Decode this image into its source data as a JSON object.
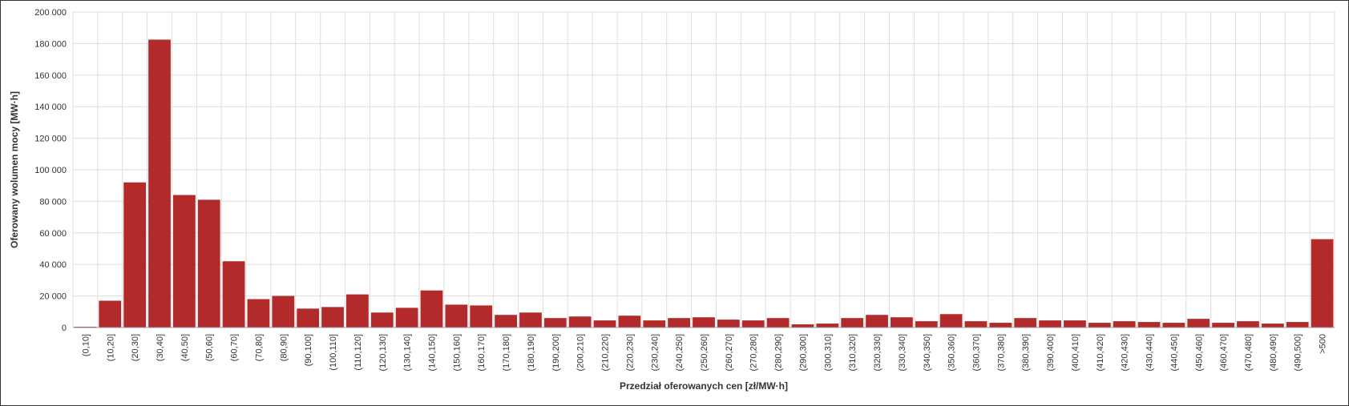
{
  "chart_data": {
    "type": "bar",
    "x_label": "Przedział oferowanych cen [zł/MW·h]",
    "y_label": "Oferowany wolumen mocy [MW·h]",
    "categories": [
      "(0,10]",
      "(10,20]",
      "(20,30]",
      "(30,40]",
      "(40,50]",
      "(50,60]",
      "(60,70]",
      "(70,80]",
      "(80,90]",
      "(90,100]",
      "(100,110]",
      "(110,120]",
      "(120,130]",
      "(130,140]",
      "(140,150]",
      "(150,160]",
      "(160,170]",
      "(170,180]",
      "(180,190]",
      "(190,200]",
      "(200,210]",
      "(210,220]",
      "(220,230]",
      "(230,240]",
      "(240,250]",
      "(250,260]",
      "(260,270]",
      "(270,280]",
      "(280,290]",
      "(290,300]",
      "(300,310]",
      "(310,320]",
      "(320,330]",
      "(330,340]",
      "(340,350]",
      "(350,360]",
      "(360,370]",
      "(370,380]",
      "(380,390]",
      "(390,400]",
      "(400,410]",
      "(410,420]",
      "(420,430]",
      "(430,440]",
      "(440,450]",
      "(450,460]",
      "(460,470]",
      "(470,480]",
      "(480,490]",
      "(490,500]",
      ">500"
    ],
    "values": [
      500,
      17000,
      92000,
      182500,
      84000,
      81000,
      42000,
      18000,
      20000,
      12000,
      13000,
      21000,
      9500,
      12500,
      23500,
      14500,
      14000,
      8000,
      9500,
      6000,
      7000,
      4500,
      7500,
      4500,
      6000,
      6500,
      5000,
      4500,
      6000,
      2000,
      2500,
      6000,
      8000,
      6500,
      4000,
      8500,
      4000,
      3000,
      6000,
      4500,
      4500,
      3000,
      4000,
      3500,
      3000,
      5500,
      3000,
      4000,
      2500,
      3500,
      56000
    ],
    "color": "#b22a2a",
    "ylim": [
      0,
      200000
    ],
    "yticks": [
      0,
      {
        "value": 20000,
        "label": "20 000"
      },
      {
        "value": 40000,
        "label": "40 000"
      },
      {
        "value": 60000,
        "label": "60 000"
      },
      {
        "value": 80000,
        "label": "80 000"
      },
      {
        "value": 100000,
        "label": "100 000"
      },
      {
        "value": 120000,
        "label": "120 000"
      },
      {
        "value": 140000,
        "label": "140 000"
      },
      {
        "value": 160000,
        "label": "160 000"
      },
      {
        "value": 180000,
        "label": "180 000"
      },
      {
        "value": 200000,
        "label": "200 000"
      }
    ],
    "grid": true
  }
}
